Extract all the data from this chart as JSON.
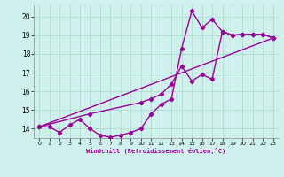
{
  "xlabel": "Windchill (Refroidissement éolien,°C)",
  "bg_color": "#cff0ec",
  "grid_color": "#aaddcc",
  "line_color": "#990099",
  "xlim": [
    -0.5,
    23.5
  ],
  "ylim": [
    13.5,
    20.6
  ],
  "xticks": [
    0,
    1,
    2,
    3,
    4,
    5,
    6,
    7,
    8,
    9,
    10,
    11,
    12,
    13,
    14,
    15,
    16,
    17,
    18,
    19,
    20,
    21,
    22,
    23
  ],
  "yticks": [
    14,
    15,
    16,
    17,
    18,
    19,
    20
  ],
  "line1_x": [
    0,
    1,
    2,
    3,
    4,
    5,
    6,
    7,
    8,
    9,
    10,
    11,
    12,
    13,
    14,
    15,
    16,
    17,
    18,
    19,
    20,
    21,
    22,
    23
  ],
  "line1_y": [
    14.1,
    14.1,
    13.8,
    14.2,
    14.5,
    14.0,
    13.65,
    13.55,
    13.65,
    13.8,
    14.0,
    14.8,
    15.3,
    15.6,
    18.3,
    20.3,
    19.4,
    19.85,
    19.2,
    19.0,
    19.05,
    19.05,
    19.05,
    18.85
  ],
  "line2_x": [
    0,
    5,
    10,
    11,
    12,
    13,
    14,
    15,
    16,
    17,
    18,
    19,
    20,
    21,
    22,
    23
  ],
  "line2_y": [
    14.1,
    14.8,
    15.4,
    15.6,
    15.85,
    16.4,
    17.35,
    16.55,
    16.9,
    16.65,
    19.2,
    19.0,
    19.05,
    19.05,
    19.05,
    18.85
  ],
  "line3_x": [
    0,
    23
  ],
  "line3_y": [
    14.1,
    18.85
  ],
  "marker": "D",
  "marker_size": 2.2,
  "line_width": 1.0
}
